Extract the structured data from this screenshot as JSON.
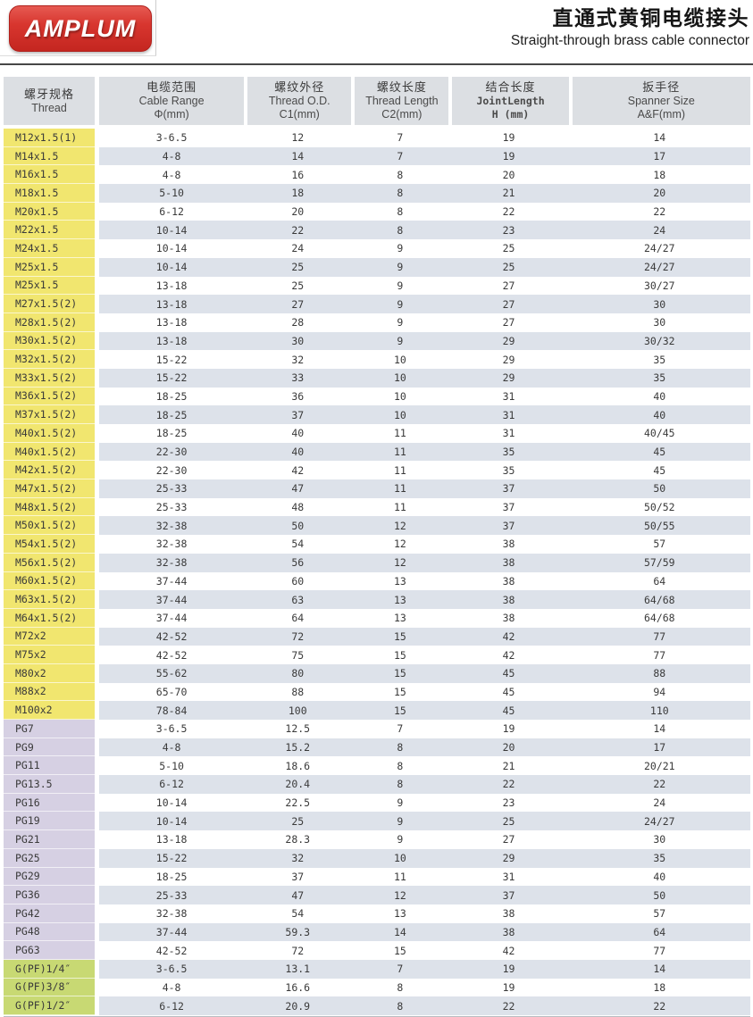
{
  "logo": {
    "text": "AMPLUM"
  },
  "header": {
    "title_zh": "直通式黄铜电缆接头",
    "title_en": "Straight-through brass cable connector"
  },
  "colors": {
    "logo_red": "#d8362f",
    "group_metric_yellow": "#f1e66f",
    "group_pg_purple": "#d6d0e3",
    "group_gpf_green": "#c8d973",
    "row_stripe": "#dde2ea",
    "header_cell_bg": "#dcdfe3"
  },
  "table": {
    "columns": [
      {
        "key": "thread",
        "zh": "螺牙规格",
        "en": "Thread",
        "unit": "",
        "mono": false
      },
      {
        "key": "cable-range",
        "zh": "电缆范围",
        "en": "Cable Range",
        "unit": "Φ(mm)",
        "mono": false
      },
      {
        "key": "thread-od",
        "zh": "螺纹外径",
        "en": "Thread O.D.",
        "unit": "C1(mm)",
        "mono": false
      },
      {
        "key": "thread-length",
        "zh": "螺纹长度",
        "en": "Thread Length",
        "unit": "C2(mm)",
        "mono": false
      },
      {
        "key": "joint-length",
        "zh": "结合长度",
        "en": "JointLength",
        "unit": "H (mm)",
        "mono": true
      },
      {
        "key": "spanner-size",
        "zh": "扳手径",
        "en": "Spanner Size",
        "unit": "A&F(mm)",
        "mono": false
      }
    ],
    "rows": [
      {
        "thread": "M12x1.5(1)",
        "group": "m",
        "values": [
          "3-6.5",
          "12",
          "7",
          "19",
          "14"
        ]
      },
      {
        "thread": "M14x1.5",
        "group": "m",
        "values": [
          "4-8",
          "14",
          "7",
          "19",
          "17"
        ]
      },
      {
        "thread": "M16x1.5",
        "group": "m",
        "values": [
          "4-8",
          "16",
          "8",
          "20",
          "18"
        ]
      },
      {
        "thread": "M18x1.5",
        "group": "m",
        "values": [
          "5-10",
          "18",
          "8",
          "21",
          "20"
        ]
      },
      {
        "thread": "M20x1.5",
        "group": "m",
        "values": [
          "6-12",
          "20",
          "8",
          "22",
          "22"
        ]
      },
      {
        "thread": "M22x1.5",
        "group": "m",
        "values": [
          "10-14",
          "22",
          "8",
          "23",
          "24"
        ]
      },
      {
        "thread": "M24x1.5",
        "group": "m",
        "values": [
          "10-14",
          "24",
          "9",
          "25",
          "24/27"
        ]
      },
      {
        "thread": "M25x1.5",
        "group": "m",
        "values": [
          "10-14",
          "25",
          "9",
          "25",
          "24/27"
        ]
      },
      {
        "thread": "M25x1.5",
        "group": "m",
        "values": [
          "13-18",
          "25",
          "9",
          "27",
          "30/27"
        ]
      },
      {
        "thread": "M27x1.5(2)",
        "group": "m",
        "values": [
          "13-18",
          "27",
          "9",
          "27",
          "30"
        ]
      },
      {
        "thread": "M28x1.5(2)",
        "group": "m",
        "values": [
          "13-18",
          "28",
          "9",
          "27",
          "30"
        ]
      },
      {
        "thread": "M30x1.5(2)",
        "group": "m",
        "values": [
          "13-18",
          "30",
          "9",
          "29",
          "30/32"
        ]
      },
      {
        "thread": "M32x1.5(2)",
        "group": "m",
        "values": [
          "15-22",
          "32",
          "10",
          "29",
          "35"
        ]
      },
      {
        "thread": "M33x1.5(2)",
        "group": "m",
        "values": [
          "15-22",
          "33",
          "10",
          "29",
          "35"
        ]
      },
      {
        "thread": "M36x1.5(2)",
        "group": "m",
        "values": [
          "18-25",
          "36",
          "10",
          "31",
          "40"
        ]
      },
      {
        "thread": "M37x1.5(2)",
        "group": "m",
        "values": [
          "18-25",
          "37",
          "10",
          "31",
          "40"
        ]
      },
      {
        "thread": "M40x1.5(2)",
        "group": "m",
        "values": [
          "18-25",
          "40",
          "11",
          "31",
          "40/45"
        ]
      },
      {
        "thread": "M40x1.5(2)",
        "group": "m",
        "values": [
          "22-30",
          "40",
          "11",
          "35",
          "45"
        ]
      },
      {
        "thread": "M42x1.5(2)",
        "group": "m",
        "values": [
          "22-30",
          "42",
          "11",
          "35",
          "45"
        ]
      },
      {
        "thread": "M47x1.5(2)",
        "group": "m",
        "values": [
          "25-33",
          "47",
          "11",
          "37",
          "50"
        ]
      },
      {
        "thread": "M48x1.5(2)",
        "group": "m",
        "values": [
          "25-33",
          "48",
          "11",
          "37",
          "50/52"
        ]
      },
      {
        "thread": "M50x1.5(2)",
        "group": "m",
        "values": [
          "32-38",
          "50",
          "12",
          "37",
          "50/55"
        ]
      },
      {
        "thread": "M54x1.5(2)",
        "group": "m",
        "values": [
          "32-38",
          "54",
          "12",
          "38",
          "57"
        ]
      },
      {
        "thread": "M56x1.5(2)",
        "group": "m",
        "values": [
          "32-38",
          "56",
          "12",
          "38",
          "57/59"
        ]
      },
      {
        "thread": "M60x1.5(2)",
        "group": "m",
        "values": [
          "37-44",
          "60",
          "13",
          "38",
          "64"
        ]
      },
      {
        "thread": "M63x1.5(2)",
        "group": "m",
        "values": [
          "37-44",
          "63",
          "13",
          "38",
          "64/68"
        ]
      },
      {
        "thread": "M64x1.5(2)",
        "group": "m",
        "values": [
          "37-44",
          "64",
          "13",
          "38",
          "64/68"
        ]
      },
      {
        "thread": "M72x2",
        "group": "m",
        "values": [
          "42-52",
          "72",
          "15",
          "42",
          "77"
        ]
      },
      {
        "thread": "M75x2",
        "group": "m",
        "values": [
          "42-52",
          "75",
          "15",
          "42",
          "77"
        ]
      },
      {
        "thread": "M80x2",
        "group": "m",
        "values": [
          "55-62",
          "80",
          "15",
          "45",
          "88"
        ]
      },
      {
        "thread": "M88x2",
        "group": "m",
        "values": [
          "65-70",
          "88",
          "15",
          "45",
          "94"
        ]
      },
      {
        "thread": "M100x2",
        "group": "m",
        "values": [
          "78-84",
          "100",
          "15",
          "45",
          "110"
        ]
      },
      {
        "thread": "PG7",
        "group": "pg",
        "values": [
          "3-6.5",
          "12.5",
          "7",
          "19",
          "14"
        ]
      },
      {
        "thread": "PG9",
        "group": "pg",
        "values": [
          "4-8",
          "15.2",
          "8",
          "20",
          "17"
        ]
      },
      {
        "thread": "PG11",
        "group": "pg",
        "values": [
          "5-10",
          "18.6",
          "8",
          "21",
          "20/21"
        ]
      },
      {
        "thread": "PG13.5",
        "group": "pg",
        "values": [
          "6-12",
          "20.4",
          "8",
          "22",
          "22"
        ]
      },
      {
        "thread": "PG16",
        "group": "pg",
        "values": [
          "10-14",
          "22.5",
          "9",
          "23",
          "24"
        ]
      },
      {
        "thread": "PG19",
        "group": "pg",
        "values": [
          "10-14",
          "25",
          "9",
          "25",
          "24/27"
        ]
      },
      {
        "thread": "PG21",
        "group": "pg",
        "values": [
          "13-18",
          "28.3",
          "9",
          "27",
          "30"
        ]
      },
      {
        "thread": "PG25",
        "group": "pg",
        "values": [
          "15-22",
          "32",
          "10",
          "29",
          "35"
        ]
      },
      {
        "thread": "PG29",
        "group": "pg",
        "values": [
          "18-25",
          "37",
          "11",
          "31",
          "40"
        ]
      },
      {
        "thread": "PG36",
        "group": "pg",
        "values": [
          "25-33",
          "47",
          "12",
          "37",
          "50"
        ]
      },
      {
        "thread": "PG42",
        "group": "pg",
        "values": [
          "32-38",
          "54",
          "13",
          "38",
          "57"
        ]
      },
      {
        "thread": "PG48",
        "group": "pg",
        "values": [
          "37-44",
          "59.3",
          "14",
          "38",
          "64"
        ]
      },
      {
        "thread": "PG63",
        "group": "pg",
        "values": [
          "42-52",
          "72",
          "15",
          "42",
          "77"
        ]
      },
      {
        "thread": "G(PF)1/4″",
        "group": "g",
        "values": [
          "3-6.5",
          "13.1",
          "7",
          "19",
          "14"
        ]
      },
      {
        "thread": "G(PF)3/8″",
        "group": "g",
        "values": [
          "4-8",
          "16.6",
          "8",
          "19",
          "18"
        ]
      },
      {
        "thread": "G(PF)1/2″",
        "group": "g",
        "values": [
          "6-12",
          "20.9",
          "8",
          "22",
          "22"
        ]
      }
    ]
  }
}
